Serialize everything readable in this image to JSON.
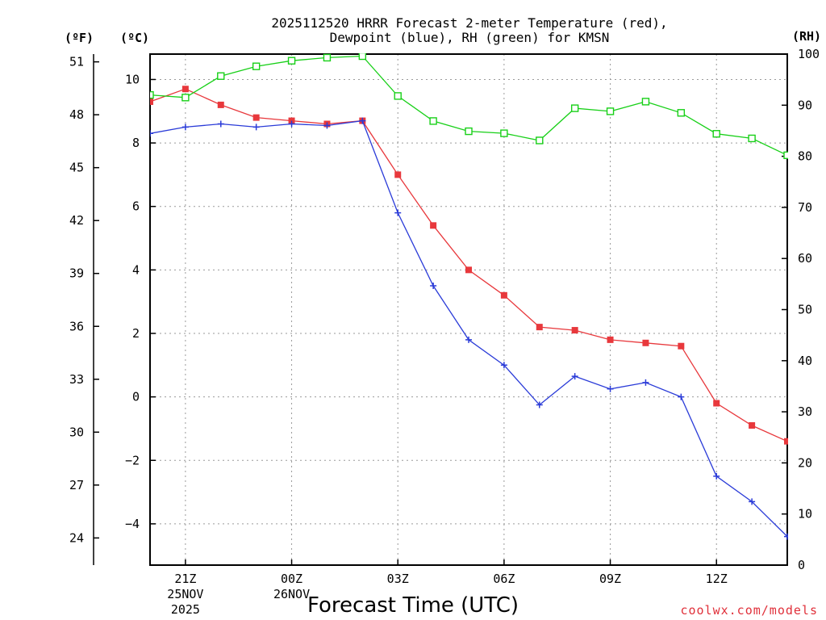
{
  "chart_data": {
    "type": "line",
    "title_line1": "2025112520 HRRR Forecast 2-meter Temperature (red),",
    "title_line2": "Dewpoint (blue), RH (green) for KMSN",
    "xlabel": "Forecast Time (UTC)",
    "credit": "coolwx.com/models",
    "units": {
      "fahrenheit": "(ºF)",
      "celsius": "(ºC)",
      "rh": "(RH)"
    },
    "x_hours": [
      20,
      21,
      22,
      23,
      24,
      25,
      26,
      27,
      28,
      29,
      30,
      31,
      32,
      33,
      34,
      35,
      36,
      37,
      38
    ],
    "xlim": [
      20,
      38
    ],
    "x_ticks": [
      {
        "hour": 21,
        "line1": "21Z",
        "line2": "25NOV",
        "line3": "2025"
      },
      {
        "hour": 24,
        "line1": "00Z",
        "line2": "26NOV",
        "line3": ""
      },
      {
        "hour": 27,
        "line1": "03Z",
        "line2": "",
        "line3": ""
      },
      {
        "hour": 30,
        "line1": "06Z",
        "line2": "",
        "line3": ""
      },
      {
        "hour": 33,
        "line1": "09Z",
        "line2": "",
        "line3": ""
      },
      {
        "hour": 36,
        "line1": "12Z",
        "line2": "",
        "line3": ""
      }
    ],
    "ylim_c": [
      -5.3,
      10.8
    ],
    "ticks_c": [
      {
        "value": 10,
        "label": "10"
      },
      {
        "value": 8,
        "label": "8"
      },
      {
        "value": 6,
        "label": "6"
      },
      {
        "value": 4,
        "label": "4"
      },
      {
        "value": 2,
        "label": "2"
      },
      {
        "value": 0,
        "label": "0"
      },
      {
        "value": -2,
        "label": "−2"
      },
      {
        "value": -4,
        "label": "−4"
      }
    ],
    "ticks_f": [
      {
        "value": 51,
        "label": "51"
      },
      {
        "value": 48,
        "label": "48"
      },
      {
        "value": 45,
        "label": "45"
      },
      {
        "value": 42,
        "label": "42"
      },
      {
        "value": 39,
        "label": "39"
      },
      {
        "value": 36,
        "label": "36"
      },
      {
        "value": 33,
        "label": "33"
      },
      {
        "value": 30,
        "label": "30"
      },
      {
        "value": 27,
        "label": "27"
      },
      {
        "value": 24,
        "label": "24"
      }
    ],
    "ylim_rh": [
      0,
      100
    ],
    "ticks_rh": [
      {
        "value": 100,
        "label": "100"
      },
      {
        "value": 90,
        "label": "90"
      },
      {
        "value": 80,
        "label": "80"
      },
      {
        "value": 70,
        "label": "70"
      },
      {
        "value": 60,
        "label": "60"
      },
      {
        "value": 50,
        "label": "50"
      },
      {
        "value": 40,
        "label": "40"
      },
      {
        "value": 30,
        "label": "30"
      },
      {
        "value": 20,
        "label": "20"
      },
      {
        "value": 10,
        "label": "10"
      },
      {
        "value": 0,
        "label": "0"
      }
    ],
    "series": [
      {
        "name": "2-meter Temperature",
        "axis": "celsius",
        "color": "#e8383c",
        "marker": "filled-square",
        "values": [
          9.3,
          9.7,
          9.2,
          8.8,
          8.7,
          8.6,
          8.7,
          7.0,
          5.4,
          4.0,
          3.2,
          2.2,
          2.1,
          1.8,
          1.7,
          1.6,
          -0.2,
          -0.9,
          -1.4
        ]
      },
      {
        "name": "Dewpoint",
        "axis": "celsius",
        "color": "#2a3bd8",
        "marker": "plus",
        "values": [
          8.3,
          8.5,
          8.6,
          8.5,
          8.6,
          8.55,
          8.7,
          5.8,
          3.5,
          1.8,
          1.0,
          -0.25,
          0.65,
          0.25,
          0.45,
          0.0,
          -2.5,
          -3.3,
          -4.4
        ]
      },
      {
        "name": "Relative Humidity",
        "axis": "rh",
        "color": "#18d018",
        "marker": "open-square",
        "values": [
          92,
          91.5,
          95.7,
          97.6,
          98.7,
          99.3,
          99.6,
          91.8,
          86.9,
          84.9,
          84.5,
          83.1,
          89.4,
          88.8,
          90.7,
          88.5,
          84.4,
          83.5,
          80.2
        ]
      }
    ]
  }
}
